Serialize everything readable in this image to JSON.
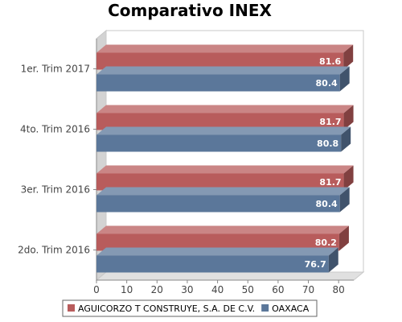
{
  "chart_data": {
    "type": "bar",
    "orientation": "horizontal",
    "style": "3d",
    "title": "Comparativo INEX",
    "categories": [
      "1er. Trim 2017",
      "4to. Trim 2016",
      "3er. Trim 2016",
      "2do. Trim 2016"
    ],
    "series": [
      {
        "name": "AGUICORZO T CONSTRUYE, S.A. DE C.V.",
        "color": "#b85c5c",
        "values": [
          81.6,
          81.7,
          81.7,
          80.2
        ]
      },
      {
        "name": "OAXACA",
        "color": "#5b779a",
        "values": [
          80.4,
          80.8,
          80.4,
          76.7
        ]
      }
    ],
    "xlim": [
      0,
      85
    ],
    "xticks": [
      0,
      10,
      20,
      30,
      40,
      50,
      60,
      70,
      80
    ],
    "grid": false,
    "legend_position": "bottom"
  }
}
